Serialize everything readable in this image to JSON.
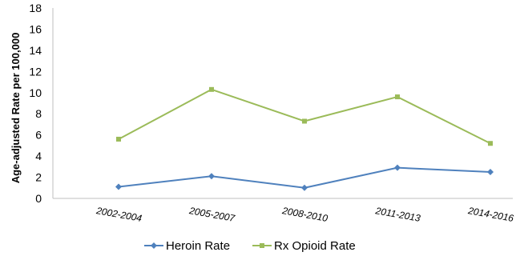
{
  "chart_data": {
    "type": "line",
    "categories": [
      "2002-2004",
      "2005-2007",
      "2008-2010",
      "2011-2013",
      "2014-2016"
    ],
    "series": [
      {
        "name": "Heroin Rate",
        "values": [
          1.1,
          2.1,
          1.0,
          2.9,
          2.5
        ],
        "color": "#4f81bd",
        "marker": "diamond"
      },
      {
        "name": "Rx Opioid Rate",
        "values": [
          5.6,
          10.3,
          7.3,
          9.6,
          5.2
        ],
        "color": "#9bbb59",
        "marker": "square"
      }
    ],
    "ylabel": "Age-adjusted Rate per 100,000",
    "ylim": [
      0,
      18
    ],
    "yticks": [
      "0",
      "2",
      "4",
      "6",
      "8",
      "10",
      "12",
      "14",
      "16",
      "18"
    ],
    "grid": false,
    "legend": "bottom"
  }
}
